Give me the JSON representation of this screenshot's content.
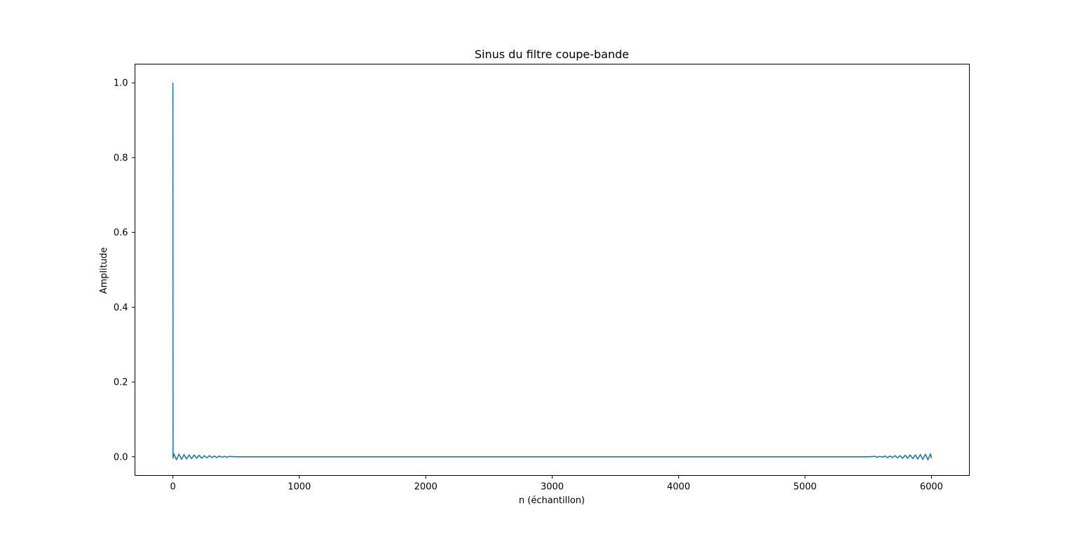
{
  "chart_data": {
    "type": "line",
    "title": "Sinus du filtre coupe-bande",
    "xlabel": "n (échantillon)",
    "ylabel": "Amplitude",
    "xlim": [
      -300,
      6300
    ],
    "ylim": [
      -0.05,
      1.05
    ],
    "xticks": [
      0,
      1000,
      2000,
      3000,
      4000,
      5000,
      6000
    ],
    "yticks": [
      0.0,
      0.2,
      0.4,
      0.6,
      0.8,
      1.0
    ],
    "xtick_labels": [
      "0",
      "1000",
      "2000",
      "3000",
      "4000",
      "5000",
      "6000"
    ],
    "ytick_labels": [
      "0.0",
      "0.2",
      "0.4",
      "0.6",
      "0.8",
      "1.0"
    ],
    "grid": false,
    "series": [
      {
        "color": "#1f77b4",
        "x": [
          0,
          1,
          2,
          3,
          8,
          28,
          48,
          68,
          88,
          108,
          128,
          148,
          168,
          188,
          208,
          228,
          248,
          268,
          288,
          308,
          328,
          348,
          368,
          388,
          408,
          428,
          448,
          500,
          1000,
          1500,
          2000,
          2500,
          3000,
          3500,
          4000,
          4500,
          5000,
          5500,
          5552,
          5572,
          5592,
          5612,
          5632,
          5652,
          5672,
          5692,
          5712,
          5732,
          5752,
          5772,
          5792,
          5812,
          5832,
          5852,
          5872,
          5892,
          5912,
          5932,
          5952,
          5972,
          5992,
          6000
        ],
        "y": [
          1.0,
          0.0,
          -0.004,
          0.002,
          0.008,
          -0.008,
          0.007,
          -0.007,
          0.006,
          -0.006,
          0.005,
          -0.005,
          0.005,
          -0.004,
          0.004,
          -0.004,
          0.003,
          -0.003,
          0.003,
          -0.002,
          0.002,
          -0.002,
          0.002,
          -0.001,
          0.001,
          -0.001,
          0.001,
          0.0,
          0.0,
          0.0,
          0.0,
          0.0,
          0.0,
          0.0,
          0.0,
          0.0,
          0.0,
          0.0,
          0.001,
          -0.001,
          0.001,
          -0.001,
          0.002,
          -0.002,
          0.002,
          -0.002,
          0.003,
          -0.003,
          0.003,
          -0.004,
          0.004,
          -0.004,
          0.005,
          -0.005,
          0.005,
          -0.006,
          0.006,
          -0.007,
          0.007,
          -0.008,
          0.008,
          -0.004
        ]
      }
    ]
  }
}
